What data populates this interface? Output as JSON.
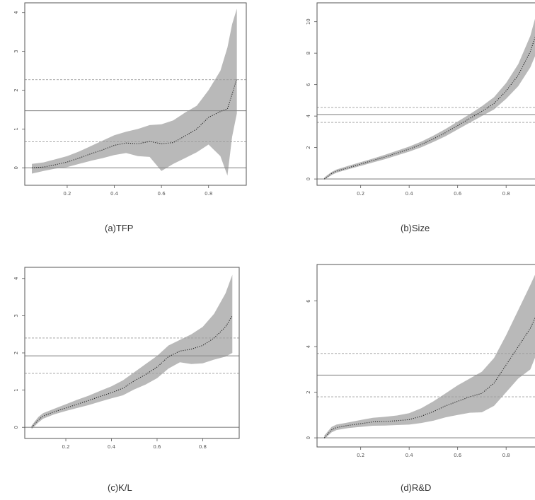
{
  "chart_data": [
    {
      "type": "line",
      "caption": "(a)TFP",
      "xlim": [
        0.02,
        0.96
      ],
      "ylim": [
        -0.45,
        4.25
      ],
      "xticks": [
        "0.2",
        "0.4",
        "0.6",
        "0.8"
      ],
      "yticks": [
        "0",
        "1",
        "2",
        "3",
        "4"
      ],
      "hlines": [
        {
          "y": 0,
          "style": "solid"
        },
        {
          "y": 1.47,
          "style": "solid"
        },
        {
          "y": 2.27,
          "style": "dashed"
        },
        {
          "y": 0.67,
          "style": "dashed"
        }
      ],
      "series": [
        {
          "role": "estimate",
          "x": [
            0.05,
            0.1,
            0.15,
            0.2,
            0.25,
            0.3,
            0.35,
            0.4,
            0.45,
            0.5,
            0.55,
            0.6,
            0.65,
            0.7,
            0.75,
            0.8,
            0.85,
            0.88,
            0.9,
            0.92
          ],
          "y": [
            0.0,
            0.02,
            0.08,
            0.15,
            0.25,
            0.36,
            0.46,
            0.58,
            0.64,
            0.62,
            0.68,
            0.62,
            0.65,
            0.82,
            1.0,
            1.3,
            1.45,
            1.52,
            1.9,
            2.3
          ]
        },
        {
          "role": "upper",
          "x": [
            0.05,
            0.1,
            0.15,
            0.2,
            0.25,
            0.3,
            0.35,
            0.4,
            0.45,
            0.5,
            0.55,
            0.6,
            0.65,
            0.7,
            0.75,
            0.8,
            0.85,
            0.88,
            0.9,
            0.92
          ],
          "y": [
            0.1,
            0.14,
            0.22,
            0.3,
            0.42,
            0.56,
            0.7,
            0.84,
            0.93,
            1.0,
            1.1,
            1.12,
            1.22,
            1.42,
            1.6,
            2.0,
            2.5,
            3.1,
            3.7,
            4.1
          ]
        },
        {
          "role": "lower",
          "x": [
            0.05,
            0.1,
            0.15,
            0.2,
            0.25,
            0.3,
            0.35,
            0.4,
            0.45,
            0.5,
            0.55,
            0.6,
            0.65,
            0.7,
            0.75,
            0.8,
            0.85,
            0.88,
            0.9,
            0.92
          ],
          "y": [
            -0.15,
            -0.08,
            -0.02,
            0.02,
            0.1,
            0.18,
            0.25,
            0.33,
            0.38,
            0.3,
            0.28,
            -0.08,
            0.1,
            0.25,
            0.4,
            0.6,
            0.3,
            -0.2,
            0.8,
            1.4
          ]
        }
      ]
    },
    {
      "type": "line",
      "caption": "(b)Size",
      "xlim": [
        0.02,
        0.96
      ],
      "ylim": [
        -0.4,
        11.2
      ],
      "xticks": [
        "0.2",
        "0.4",
        "0.6",
        "0.8"
      ],
      "yticks": [
        "0",
        "2",
        "4",
        "6",
        "8",
        "10"
      ],
      "hlines": [
        {
          "y": 0,
          "style": "solid"
        },
        {
          "y": 4.1,
          "style": "solid"
        },
        {
          "y": 4.55,
          "style": "dashed"
        },
        {
          "y": 3.6,
          "style": "dashed"
        }
      ],
      "series": [
        {
          "role": "estimate",
          "x": [
            0.05,
            0.08,
            0.1,
            0.15,
            0.2,
            0.25,
            0.3,
            0.35,
            0.4,
            0.45,
            0.5,
            0.55,
            0.6,
            0.65,
            0.7,
            0.75,
            0.8,
            0.85,
            0.9,
            0.93
          ],
          "y": [
            0.0,
            0.35,
            0.5,
            0.72,
            0.95,
            1.18,
            1.4,
            1.65,
            1.9,
            2.2,
            2.55,
            2.95,
            3.4,
            3.85,
            4.3,
            4.8,
            5.6,
            6.6,
            8.1,
            9.5
          ]
        },
        {
          "role": "upper",
          "x": [
            0.05,
            0.08,
            0.1,
            0.15,
            0.2,
            0.25,
            0.3,
            0.35,
            0.4,
            0.45,
            0.5,
            0.55,
            0.6,
            0.65,
            0.7,
            0.75,
            0.8,
            0.85,
            0.9,
            0.93
          ],
          "y": [
            0.1,
            0.45,
            0.6,
            0.84,
            1.07,
            1.3,
            1.54,
            1.8,
            2.06,
            2.38,
            2.75,
            3.18,
            3.65,
            4.12,
            4.62,
            5.2,
            6.1,
            7.3,
            9.1,
            10.8
          ]
        },
        {
          "role": "lower",
          "x": [
            0.05,
            0.08,
            0.1,
            0.15,
            0.2,
            0.25,
            0.3,
            0.35,
            0.4,
            0.45,
            0.5,
            0.55,
            0.6,
            0.65,
            0.7,
            0.75,
            0.8,
            0.85,
            0.9,
            0.93
          ],
          "y": [
            -0.05,
            0.25,
            0.4,
            0.62,
            0.83,
            1.05,
            1.26,
            1.5,
            1.74,
            2.02,
            2.35,
            2.72,
            3.15,
            3.58,
            4.0,
            4.42,
            5.1,
            5.9,
            7.1,
            8.2
          ]
        }
      ]
    },
    {
      "type": "line",
      "caption": "(c)K/L",
      "xlim": [
        0.02,
        0.96
      ],
      "ylim": [
        -0.3,
        4.3
      ],
      "xticks": [
        "0.2",
        "0.4",
        "0.6",
        "0.8"
      ],
      "yticks": [
        "0",
        "1",
        "2",
        "3",
        "4"
      ],
      "hlines": [
        {
          "y": 0,
          "style": "solid"
        },
        {
          "y": 1.92,
          "style": "solid"
        },
        {
          "y": 2.4,
          "style": "dashed"
        },
        {
          "y": 1.45,
          "style": "dashed"
        }
      ],
      "series": [
        {
          "role": "estimate",
          "x": [
            0.05,
            0.08,
            0.1,
            0.15,
            0.2,
            0.25,
            0.3,
            0.35,
            0.4,
            0.45,
            0.5,
            0.55,
            0.6,
            0.65,
            0.7,
            0.75,
            0.8,
            0.85,
            0.9,
            0.93
          ],
          "y": [
            0.0,
            0.2,
            0.3,
            0.42,
            0.52,
            0.62,
            0.72,
            0.83,
            0.93,
            1.05,
            1.25,
            1.42,
            1.62,
            1.9,
            2.05,
            2.1,
            2.2,
            2.4,
            2.7,
            3.0
          ]
        },
        {
          "role": "upper",
          "x": [
            0.05,
            0.08,
            0.1,
            0.15,
            0.2,
            0.25,
            0.3,
            0.35,
            0.4,
            0.45,
            0.5,
            0.55,
            0.6,
            0.65,
            0.7,
            0.75,
            0.8,
            0.85,
            0.9,
            0.93
          ],
          "y": [
            0.05,
            0.28,
            0.38,
            0.5,
            0.62,
            0.74,
            0.85,
            0.98,
            1.1,
            1.26,
            1.48,
            1.7,
            1.92,
            2.2,
            2.35,
            2.5,
            2.7,
            3.05,
            3.6,
            4.1
          ]
        },
        {
          "role": "lower",
          "x": [
            0.05,
            0.08,
            0.1,
            0.15,
            0.2,
            0.25,
            0.3,
            0.35,
            0.4,
            0.45,
            0.5,
            0.55,
            0.6,
            0.65,
            0.7,
            0.75,
            0.8,
            0.85,
            0.9,
            0.93
          ],
          "y": [
            -0.05,
            0.13,
            0.23,
            0.35,
            0.44,
            0.52,
            0.6,
            0.69,
            0.78,
            0.86,
            1.02,
            1.15,
            1.32,
            1.58,
            1.75,
            1.7,
            1.72,
            1.82,
            1.9,
            2.0
          ]
        }
      ]
    },
    {
      "type": "line",
      "caption": "(d)R&D",
      "xlim": [
        0.02,
        0.96
      ],
      "ylim": [
        -0.4,
        7.6
      ],
      "xticks": [
        "0.2",
        "0.4",
        "0.6",
        "0.8"
      ],
      "yticks": [
        "0",
        "2",
        "4",
        "6"
      ],
      "hlines": [
        {
          "y": 0,
          "style": "solid"
        },
        {
          "y": 2.75,
          "style": "solid"
        },
        {
          "y": 3.7,
          "style": "dashed"
        },
        {
          "y": 1.8,
          "style": "dashed"
        }
      ],
      "series": [
        {
          "role": "estimate",
          "x": [
            0.05,
            0.08,
            0.1,
            0.15,
            0.2,
            0.25,
            0.3,
            0.35,
            0.4,
            0.45,
            0.5,
            0.55,
            0.6,
            0.65,
            0.7,
            0.75,
            0.8,
            0.85,
            0.9,
            0.93
          ],
          "y": [
            0.0,
            0.35,
            0.45,
            0.55,
            0.62,
            0.7,
            0.72,
            0.75,
            0.8,
            0.95,
            1.15,
            1.4,
            1.6,
            1.8,
            1.95,
            2.4,
            3.2,
            4.0,
            4.8,
            5.5
          ]
        },
        {
          "role": "upper",
          "x": [
            0.05,
            0.08,
            0.1,
            0.15,
            0.2,
            0.25,
            0.3,
            0.35,
            0.4,
            0.45,
            0.5,
            0.55,
            0.6,
            0.65,
            0.7,
            0.75,
            0.8,
            0.85,
            0.9,
            0.93
          ],
          "y": [
            0.1,
            0.48,
            0.58,
            0.68,
            0.78,
            0.88,
            0.92,
            0.98,
            1.08,
            1.3,
            1.6,
            1.95,
            2.3,
            2.6,
            2.9,
            3.5,
            4.5,
            5.6,
            6.7,
            7.4
          ]
        },
        {
          "role": "lower",
          "x": [
            0.05,
            0.08,
            0.1,
            0.15,
            0.2,
            0.25,
            0.3,
            0.35,
            0.4,
            0.45,
            0.5,
            0.55,
            0.6,
            0.65,
            0.7,
            0.75,
            0.8,
            0.85,
            0.9,
            0.93
          ],
          "y": [
            -0.05,
            0.24,
            0.34,
            0.43,
            0.48,
            0.53,
            0.54,
            0.56,
            0.58,
            0.65,
            0.75,
            0.9,
            1.0,
            1.1,
            1.12,
            1.4,
            2.0,
            2.6,
            3.0,
            3.8
          ]
        }
      ]
    }
  ]
}
